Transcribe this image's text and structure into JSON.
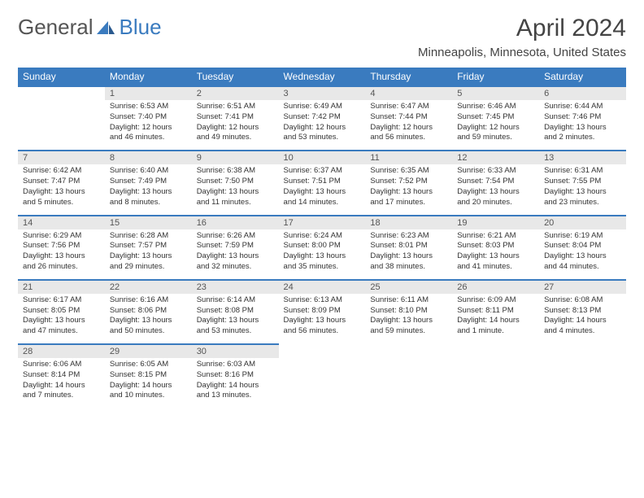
{
  "logo": {
    "text_left": "General",
    "text_right": "Blue"
  },
  "title": "April 2024",
  "location": "Minneapolis, Minnesota, United States",
  "colors": {
    "header_bg": "#3a7bbf",
    "header_text": "#ffffff",
    "daynum_bg": "#e8e8e8",
    "text": "#333333",
    "border": "#3a7bbf"
  },
  "daynames": [
    "Sunday",
    "Monday",
    "Tuesday",
    "Wednesday",
    "Thursday",
    "Friday",
    "Saturday"
  ],
  "weeks": [
    [
      null,
      {
        "n": "1",
        "sr": "Sunrise: 6:53 AM",
        "ss": "Sunset: 7:40 PM",
        "dl": "Daylight: 12 hours and 46 minutes."
      },
      {
        "n": "2",
        "sr": "Sunrise: 6:51 AM",
        "ss": "Sunset: 7:41 PM",
        "dl": "Daylight: 12 hours and 49 minutes."
      },
      {
        "n": "3",
        "sr": "Sunrise: 6:49 AM",
        "ss": "Sunset: 7:42 PM",
        "dl": "Daylight: 12 hours and 53 minutes."
      },
      {
        "n": "4",
        "sr": "Sunrise: 6:47 AM",
        "ss": "Sunset: 7:44 PM",
        "dl": "Daylight: 12 hours and 56 minutes."
      },
      {
        "n": "5",
        "sr": "Sunrise: 6:46 AM",
        "ss": "Sunset: 7:45 PM",
        "dl": "Daylight: 12 hours and 59 minutes."
      },
      {
        "n": "6",
        "sr": "Sunrise: 6:44 AM",
        "ss": "Sunset: 7:46 PM",
        "dl": "Daylight: 13 hours and 2 minutes."
      }
    ],
    [
      {
        "n": "7",
        "sr": "Sunrise: 6:42 AM",
        "ss": "Sunset: 7:47 PM",
        "dl": "Daylight: 13 hours and 5 minutes."
      },
      {
        "n": "8",
        "sr": "Sunrise: 6:40 AM",
        "ss": "Sunset: 7:49 PM",
        "dl": "Daylight: 13 hours and 8 minutes."
      },
      {
        "n": "9",
        "sr": "Sunrise: 6:38 AM",
        "ss": "Sunset: 7:50 PM",
        "dl": "Daylight: 13 hours and 11 minutes."
      },
      {
        "n": "10",
        "sr": "Sunrise: 6:37 AM",
        "ss": "Sunset: 7:51 PM",
        "dl": "Daylight: 13 hours and 14 minutes."
      },
      {
        "n": "11",
        "sr": "Sunrise: 6:35 AM",
        "ss": "Sunset: 7:52 PM",
        "dl": "Daylight: 13 hours and 17 minutes."
      },
      {
        "n": "12",
        "sr": "Sunrise: 6:33 AM",
        "ss": "Sunset: 7:54 PM",
        "dl": "Daylight: 13 hours and 20 minutes."
      },
      {
        "n": "13",
        "sr": "Sunrise: 6:31 AM",
        "ss": "Sunset: 7:55 PM",
        "dl": "Daylight: 13 hours and 23 minutes."
      }
    ],
    [
      {
        "n": "14",
        "sr": "Sunrise: 6:29 AM",
        "ss": "Sunset: 7:56 PM",
        "dl": "Daylight: 13 hours and 26 minutes."
      },
      {
        "n": "15",
        "sr": "Sunrise: 6:28 AM",
        "ss": "Sunset: 7:57 PM",
        "dl": "Daylight: 13 hours and 29 minutes."
      },
      {
        "n": "16",
        "sr": "Sunrise: 6:26 AM",
        "ss": "Sunset: 7:59 PM",
        "dl": "Daylight: 13 hours and 32 minutes."
      },
      {
        "n": "17",
        "sr": "Sunrise: 6:24 AM",
        "ss": "Sunset: 8:00 PM",
        "dl": "Daylight: 13 hours and 35 minutes."
      },
      {
        "n": "18",
        "sr": "Sunrise: 6:23 AM",
        "ss": "Sunset: 8:01 PM",
        "dl": "Daylight: 13 hours and 38 minutes."
      },
      {
        "n": "19",
        "sr": "Sunrise: 6:21 AM",
        "ss": "Sunset: 8:03 PM",
        "dl": "Daylight: 13 hours and 41 minutes."
      },
      {
        "n": "20",
        "sr": "Sunrise: 6:19 AM",
        "ss": "Sunset: 8:04 PM",
        "dl": "Daylight: 13 hours and 44 minutes."
      }
    ],
    [
      {
        "n": "21",
        "sr": "Sunrise: 6:17 AM",
        "ss": "Sunset: 8:05 PM",
        "dl": "Daylight: 13 hours and 47 minutes."
      },
      {
        "n": "22",
        "sr": "Sunrise: 6:16 AM",
        "ss": "Sunset: 8:06 PM",
        "dl": "Daylight: 13 hours and 50 minutes."
      },
      {
        "n": "23",
        "sr": "Sunrise: 6:14 AM",
        "ss": "Sunset: 8:08 PM",
        "dl": "Daylight: 13 hours and 53 minutes."
      },
      {
        "n": "24",
        "sr": "Sunrise: 6:13 AM",
        "ss": "Sunset: 8:09 PM",
        "dl": "Daylight: 13 hours and 56 minutes."
      },
      {
        "n": "25",
        "sr": "Sunrise: 6:11 AM",
        "ss": "Sunset: 8:10 PM",
        "dl": "Daylight: 13 hours and 59 minutes."
      },
      {
        "n": "26",
        "sr": "Sunrise: 6:09 AM",
        "ss": "Sunset: 8:11 PM",
        "dl": "Daylight: 14 hours and 1 minute."
      },
      {
        "n": "27",
        "sr": "Sunrise: 6:08 AM",
        "ss": "Sunset: 8:13 PM",
        "dl": "Daylight: 14 hours and 4 minutes."
      }
    ],
    [
      {
        "n": "28",
        "sr": "Sunrise: 6:06 AM",
        "ss": "Sunset: 8:14 PM",
        "dl": "Daylight: 14 hours and 7 minutes."
      },
      {
        "n": "29",
        "sr": "Sunrise: 6:05 AM",
        "ss": "Sunset: 8:15 PM",
        "dl": "Daylight: 14 hours and 10 minutes."
      },
      {
        "n": "30",
        "sr": "Sunrise: 6:03 AM",
        "ss": "Sunset: 8:16 PM",
        "dl": "Daylight: 14 hours and 13 minutes."
      },
      null,
      null,
      null,
      null
    ]
  ]
}
